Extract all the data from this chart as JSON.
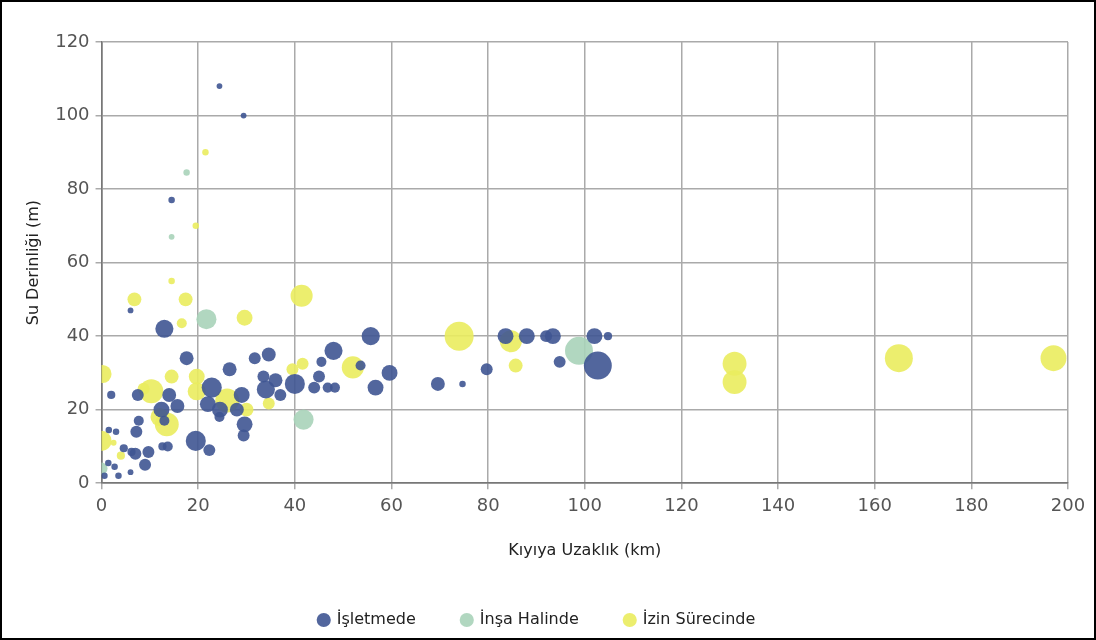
{
  "chart_data": {
    "type": "bubble",
    "xlabel": "Kıyıya Uzaklık (km)",
    "ylabel": "Su Derinliği (m)",
    "xlim": [
      0,
      200
    ],
    "xticks": [
      0,
      20,
      40,
      60,
      80,
      100,
      120,
      140,
      160,
      180,
      200
    ],
    "ylim": [
      0,
      120
    ],
    "yticks": [
      0,
      20,
      40,
      60,
      80,
      100,
      120
    ],
    "grid": true,
    "legend": "bottom",
    "series": [
      {
        "name": "İşletmede",
        "color": "#3f5592",
        "x": [
          24.4,
          29.4,
          14.5,
          6,
          13,
          17.6,
          26.5,
          31.7,
          34.6,
          48,
          55.7,
          53.6,
          45.5,
          45,
          59.6,
          56.7,
          44,
          46.8,
          48.3,
          69.6,
          74.7,
          79.7,
          83.6,
          88,
          92,
          93.4,
          94.8,
          102,
          104.8,
          102.7,
          40,
          34,
          33.5,
          36,
          37,
          29,
          22.8,
          22,
          24.5,
          28,
          29.6,
          29.4,
          24.4,
          19.5,
          22.3,
          15.7,
          14,
          12.4,
          13,
          12.6,
          13.7,
          7.5,
          7.7,
          7.2,
          2,
          1.5,
          3,
          4.6,
          6.2,
          7,
          9.7,
          9,
          6,
          2.7,
          1.4,
          3.5,
          0.6
        ],
        "values": [
          108,
          100,
          77,
          47,
          42,
          34,
          31,
          34,
          35,
          36,
          40,
          32,
          33,
          29,
          30,
          26,
          26,
          26,
          26,
          27,
          27,
          31,
          40,
          40,
          40,
          40,
          33,
          40,
          40,
          32,
          27,
          25.5,
          29,
          28,
          24,
          24,
          26,
          21.5,
          20,
          20,
          16,
          13,
          18,
          11.5,
          9,
          21,
          24,
          20,
          17,
          10,
          10,
          24,
          17,
          14,
          24,
          14.5,
          14,
          9.5,
          8.5,
          8,
          8.5,
          5,
          3,
          4.5,
          5.5,
          2,
          2
        ],
        "sizes": [
          0.04,
          0.04,
          0.05,
          0.04,
          0.39,
          0.23,
          0.23,
          0.17,
          0.23,
          0.39,
          0.39,
          0.12,
          0.12,
          0.17,
          0.3,
          0.3,
          0.17,
          0.12,
          0.12,
          0.23,
          0.05,
          0.17,
          0.3,
          0.3,
          0.17,
          0.3,
          0.17,
          0.3,
          0.08,
          0.93,
          0.48,
          0.39,
          0.17,
          0.23,
          0.17,
          0.3,
          0.48,
          0.3,
          0.3,
          0.23,
          0.3,
          0.17,
          0.12,
          0.48,
          0.17,
          0.23,
          0.23,
          0.3,
          0.12,
          0.08,
          0.12,
          0.17,
          0.12,
          0.17,
          0.08,
          0.05,
          0.05,
          0.08,
          0.08,
          0.17,
          0.17,
          0.17,
          0.04,
          0.05,
          0.05,
          0.05,
          0.05
        ]
      },
      {
        "name": "İnşa Halinde",
        "color": "#a9d3b9",
        "x": [
          14.5,
          21.7,
          98.8,
          41.8,
          0,
          17.6
        ],
        "values": [
          67,
          44.6,
          36,
          17.3,
          4,
          84.5
        ],
        "sizes": [
          0.04,
          0.48,
          0.93,
          0.48,
          0.17,
          0.05
        ]
      },
      {
        "name": "İzin Sürecinde",
        "color": "#eaec5e",
        "x": [
          21.5,
          19.5,
          14.5,
          6.8,
          17.4,
          16.6,
          29.6,
          41.4,
          41.6,
          39.5,
          74,
          84.7,
          85.7,
          0.2,
          14.5,
          19.7,
          19.7,
          10.3,
          8.7,
          13.5,
          26,
          30,
          34.6,
          12,
          52,
          0,
          4,
          2.5,
          131,
          131,
          165,
          197
        ],
        "values": [
          90,
          70,
          55,
          50,
          50,
          43.5,
          45,
          51,
          32.5,
          31,
          40,
          38.6,
          32,
          29.7,
          29,
          29,
          25,
          25,
          25.7,
          16,
          22.5,
          20,
          21.7,
          18,
          31.5,
          11.5,
          7.5,
          11,
          32.5,
          27.5,
          34,
          34
        ],
        "sizes": [
          0.05,
          0.05,
          0.05,
          0.23,
          0.23,
          0.12,
          0.3,
          0.58,
          0.17,
          0.17,
          1,
          0.58,
          0.23,
          0.39,
          0.23,
          0.3,
          0.39,
          0.68,
          0.17,
          0.68,
          0.68,
          0.23,
          0.17,
          0.39,
          0.58,
          0.48,
          0.08,
          0.04,
          0.68,
          0.68,
          0.93,
          0.8
        ]
      }
    ]
  }
}
